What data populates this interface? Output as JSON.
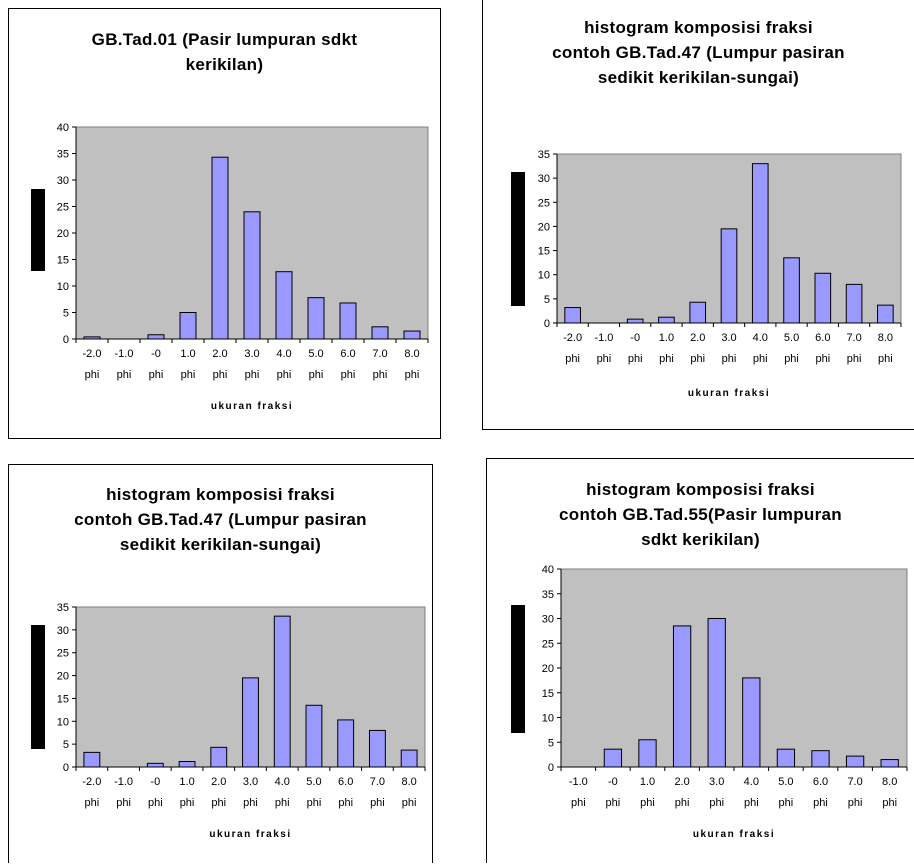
{
  "chart_data": [
    {
      "type": "bar",
      "title": [
        "GB.Tad.01 (Pasir lumpuran sdkt",
        "kerikilan)"
      ],
      "xlabel": "ukuran fraksi",
      "ylim": [
        0,
        40
      ],
      "yticks": [
        0,
        5,
        10,
        15,
        20,
        25,
        30,
        35,
        40
      ],
      "categories": [
        "-2.0 phi",
        "-1.0 phi",
        "-0 phi",
        "1.0 phi",
        "2.0 phi",
        "3.0 phi",
        "4.0 phi",
        "5.0 phi",
        "6.0 phi",
        "7.0 phi",
        "8.0 phi"
      ],
      "values": [
        0.4,
        0,
        0.8,
        5.0,
        34.3,
        24.0,
        12.7,
        7.8,
        6.8,
        2.3,
        1.5
      ],
      "colors": {
        "bar": "#9999ff",
        "plot_bg": "#c0c0c0",
        "edge": "#000000"
      }
    },
    {
      "type": "bar",
      "title": [
        "histogram komposisi fraksi",
        "contoh GB.Tad.47 (Lumpur pasiran",
        "sedikit kerikilan-sungai)"
      ],
      "xlabel": "ukuran fraksi",
      "ylim": [
        0,
        35
      ],
      "yticks": [
        0,
        5,
        10,
        15,
        20,
        25,
        30,
        35
      ],
      "categories": [
        "-2.0 phi",
        "-1.0 phi",
        "-0 phi",
        "1.0 phi",
        "2.0 phi",
        "3.0 phi",
        "4.0 phi",
        "5.0 phi",
        "6.0 phi",
        "7.0 phi",
        "8.0 phi"
      ],
      "values": [
        3.2,
        0,
        0.8,
        1.2,
        4.3,
        19.5,
        33.0,
        13.5,
        10.3,
        8.0,
        3.7
      ],
      "colors": {
        "bar": "#9999ff",
        "plot_bg": "#c0c0c0",
        "edge": "#000000"
      }
    },
    {
      "type": "bar",
      "title": [
        "histogram komposisi fraksi",
        "contoh GB.Tad.47 (Lumpur pasiran",
        "sedikit kerikilan-sungai)"
      ],
      "xlabel": "ukuran fraksi",
      "ylim": [
        0,
        35
      ],
      "yticks": [
        0,
        5,
        10,
        15,
        20,
        25,
        30,
        35
      ],
      "categories": [
        "-2.0 phi",
        "-1.0 phi",
        "-0 phi",
        "1.0 phi",
        "2.0 phi",
        "3.0 phi",
        "4.0 phi",
        "5.0 phi",
        "6.0 phi",
        "7.0 phi",
        "8.0 phi"
      ],
      "values": [
        3.2,
        0,
        0.8,
        1.2,
        4.3,
        19.5,
        33.0,
        13.5,
        10.3,
        8.0,
        3.7
      ],
      "colors": {
        "bar": "#9999ff",
        "plot_bg": "#c0c0c0",
        "edge": "#000000"
      }
    },
    {
      "type": "bar",
      "title": [
        "histogram komposisi fraksi",
        "contoh GB.Tad.55(Pasir lumpuran",
        "sdkt kerikilan)"
      ],
      "xlabel": "ukuran fraksi",
      "ylim": [
        0,
        40
      ],
      "yticks": [
        0,
        5,
        10,
        15,
        20,
        25,
        30,
        35,
        40
      ],
      "categories": [
        "-1.0 phi",
        "-0 phi",
        "1.0 phi",
        "2.0 phi",
        "3.0 phi",
        "4.0 phi",
        "5.0 phi",
        "6.0 phi",
        "7.0 phi",
        "8.0 phi"
      ],
      "values": [
        0,
        3.6,
        5.5,
        28.5,
        30.0,
        18.0,
        3.6,
        3.3,
        2.2,
        1.5
      ],
      "colors": {
        "bar": "#9999ff",
        "plot_bg": "#c0c0c0",
        "edge": "#000000"
      }
    }
  ]
}
